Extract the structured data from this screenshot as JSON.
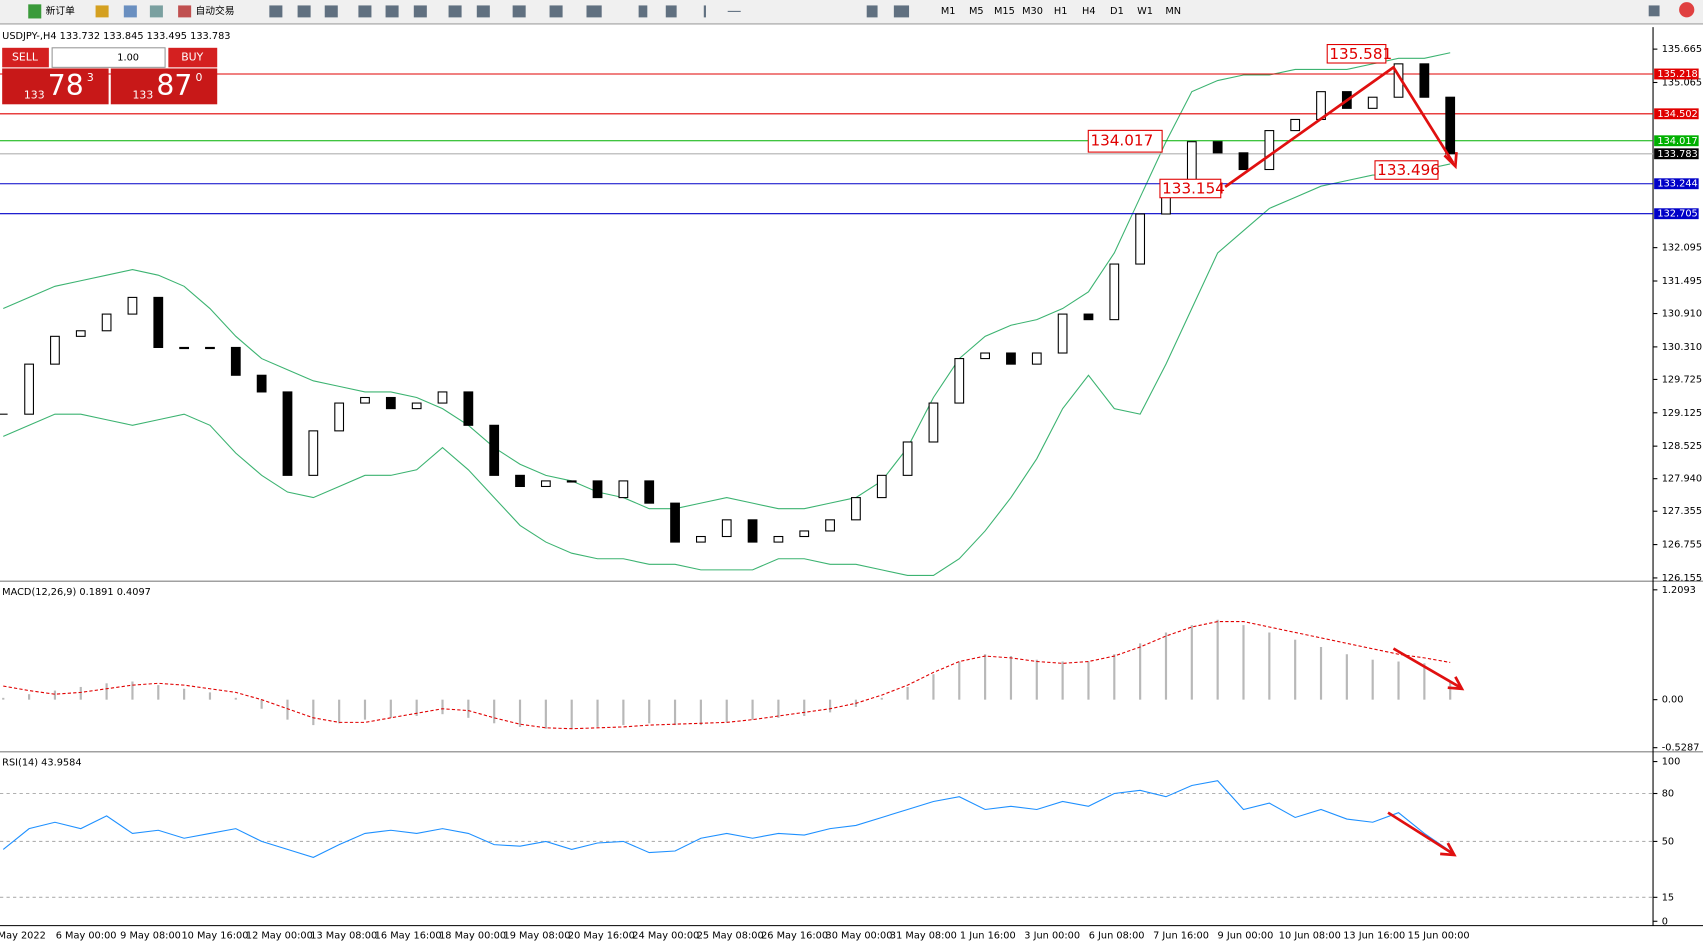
{
  "toolbar": {
    "new_order": "新订单",
    "auto_trading": "自动交易",
    "timeframes": [
      "M1",
      "M5",
      "M15",
      "M30",
      "H1",
      "H4",
      "D1",
      "W1",
      "MN"
    ]
  },
  "trade_panel": {
    "sell": "SELL",
    "buy": "BUY",
    "lot": "1.00",
    "sell_price": {
      "big": "133",
      "main": "78",
      "small": "3"
    },
    "buy_price": {
      "big": "133",
      "main": "87",
      "small": "0"
    }
  },
  "time_axis": [
    "May 2022",
    "6 May 00:00",
    "9 May 08:00",
    "10 May 16:00",
    "12 May 00:00",
    "13 May 08:00",
    "16 May 16:00",
    "18 May 00:00",
    "19 May 08:00",
    "20 May 16:00",
    "24 May 00:00",
    "25 May 08:00",
    "26 May 16:00",
    "30 May 00:00",
    "31 May 08:00",
    "1 Jun 16:00",
    "3 Jun 00:00",
    "6 Jun 08:00",
    "7 Jun 16:00",
    "9 Jun 00:00",
    "10 Jun 08:00",
    "13 Jun 16:00",
    "15 Jun 00:00"
  ],
  "chart_data": [
    {
      "type": "candlestick",
      "title": "USDJPY-,H4  133.732 133.845 133.495 133.783",
      "closes": [
        129.1,
        130.0,
        130.5,
        130.6,
        130.9,
        131.2,
        130.3,
        130.3,
        130.3,
        129.8,
        129.5,
        128.0,
        128.8,
        129.3,
        129.4,
        129.2,
        129.3,
        129.5,
        128.9,
        128.0,
        127.8,
        127.9,
        127.9,
        127.6,
        127.9,
        127.5,
        126.8,
        126.9,
        127.2,
        126.8,
        126.9,
        127.0,
        127.2,
        127.6,
        128.0,
        128.6,
        129.3,
        130.1,
        130.2,
        130.0,
        130.2,
        130.9,
        130.8,
        131.8,
        132.7,
        133.0,
        134.0,
        133.8,
        133.5,
        134.2,
        134.4,
        134.9,
        134.6,
        134.8,
        135.4,
        134.8,
        133.783
      ],
      "bands": {
        "color": "#3cb371",
        "upper": [
          131.0,
          131.2,
          131.4,
          131.5,
          131.6,
          131.7,
          131.6,
          131.4,
          131.0,
          130.5,
          130.1,
          129.9,
          129.7,
          129.6,
          129.5,
          129.5,
          129.4,
          129.2,
          128.9,
          128.5,
          128.2,
          128.0,
          127.9,
          127.7,
          127.6,
          127.4,
          127.4,
          127.5,
          127.6,
          127.5,
          127.4,
          127.4,
          127.5,
          127.6,
          127.9,
          128.5,
          129.4,
          130.1,
          130.5,
          130.7,
          130.8,
          131.0,
          131.3,
          132.0,
          133.0,
          134.0,
          134.9,
          135.1,
          135.2,
          135.2,
          135.3,
          135.3,
          135.3,
          135.4,
          135.5,
          135.5,
          135.6
        ],
        "lower": [
          128.7,
          128.9,
          129.1,
          129.1,
          129.0,
          128.9,
          129.0,
          129.1,
          128.9,
          128.4,
          128.0,
          127.7,
          127.6,
          127.8,
          128.0,
          128.0,
          128.1,
          128.5,
          128.1,
          127.6,
          127.1,
          126.8,
          126.6,
          126.5,
          126.5,
          126.4,
          126.4,
          126.3,
          126.3,
          126.3,
          126.5,
          126.5,
          126.4,
          126.4,
          126.3,
          126.2,
          126.2,
          126.5,
          127.0,
          127.6,
          128.3,
          129.2,
          129.8,
          129.2,
          129.1,
          130.0,
          131.0,
          132.0,
          132.4,
          132.8,
          133.0,
          133.2,
          133.3,
          133.4,
          133.4,
          133.5,
          133.6
        ]
      },
      "ylim": [
        126.135,
        136.06
      ],
      "yticks": [
        135.665,
        135.065,
        132.095,
        131.495,
        {
          "value": 130.91,
          "label": "130.910"
        },
        {
          "value": 130.31,
          "label": "130.310"
        },
        129.725,
        129.125,
        128.525,
        {
          "value": 127.94,
          "label": "127.940"
        },
        127.355,
        126.755,
        126.155
      ],
      "levels": [
        {
          "value": 135.218,
          "color": "#e00000"
        },
        {
          "value": 134.502,
          "color": "#e00000"
        },
        {
          "value": 134.017,
          "color": "#00b000"
        },
        {
          "value": 133.783,
          "color": "#000000"
        },
        {
          "value": 133.244,
          "color": "#0000c8"
        },
        {
          "value": 132.705,
          "color": "#0000c8"
        }
      ],
      "annotations": [
        135.581,
        134.017,
        133.154,
        133.496
      ]
    },
    {
      "type": "macd",
      "title": "MACD(12,26,9) 0.1891 0.4097",
      "histogram": [
        0.02,
        0.06,
        0.1,
        0.14,
        0.18,
        0.2,
        0.16,
        0.12,
        0.08,
        0.02,
        -0.1,
        -0.22,
        -0.28,
        -0.26,
        -0.22,
        -0.2,
        -0.18,
        -0.16,
        -0.2,
        -0.26,
        -0.3,
        -0.32,
        -0.32,
        -0.3,
        -0.28,
        -0.26,
        -0.28,
        -0.28,
        -0.25,
        -0.22,
        -0.2,
        -0.18,
        -0.14,
        -0.08,
        0.02,
        0.14,
        0.28,
        0.42,
        0.5,
        0.48,
        0.44,
        0.42,
        0.42,
        0.5,
        0.62,
        0.74,
        0.82,
        0.88,
        0.82,
        0.74,
        0.66,
        0.58,
        0.5,
        0.44,
        0.42,
        0.4,
        0.1891
      ],
      "signal": [
        0.15,
        0.1,
        0.06,
        0.08,
        0.12,
        0.16,
        0.18,
        0.16,
        0.12,
        0.08,
        0.0,
        -0.1,
        -0.2,
        -0.25,
        -0.25,
        -0.2,
        -0.15,
        -0.1,
        -0.12,
        -0.2,
        -0.27,
        -0.31,
        -0.32,
        -0.31,
        -0.3,
        -0.28,
        -0.27,
        -0.26,
        -0.25,
        -0.22,
        -0.18,
        -0.14,
        -0.1,
        -0.04,
        0.05,
        0.16,
        0.3,
        0.42,
        0.48,
        0.46,
        0.42,
        0.4,
        0.42,
        0.48,
        0.58,
        0.7,
        0.8,
        0.86,
        0.86,
        0.8,
        0.74,
        0.68,
        0.62,
        0.56,
        0.5,
        0.46,
        0.4097
      ],
      "ylim": [
        -0.55,
        1.28
      ],
      "yticks": [
        1.2093,
        {
          "value": 0,
          "label": "0.00"
        },
        -0.5287
      ]
    },
    {
      "type": "rsi",
      "title": "RSI(14) 43.9584",
      "color": "#1e90ff",
      "values": [
        45,
        58,
        62,
        58,
        66,
        55,
        57,
        52,
        55,
        58,
        50,
        45,
        40,
        48,
        55,
        57,
        55,
        58,
        55,
        48,
        47,
        50,
        45,
        49,
        50,
        43,
        44,
        52,
        55,
        52,
        55,
        54,
        58,
        60,
        65,
        70,
        75,
        78,
        70,
        72,
        70,
        75,
        72,
        80,
        82,
        78,
        85,
        88,
        70,
        74,
        65,
        70,
        64,
        62,
        68,
        55,
        43.9584
      ],
      "ylim": [
        0,
        100
      ],
      "yticks": [
        100,
        80,
        50,
        15,
        0
      ],
      "levels": [
        80,
        50,
        15
      ]
    }
  ]
}
